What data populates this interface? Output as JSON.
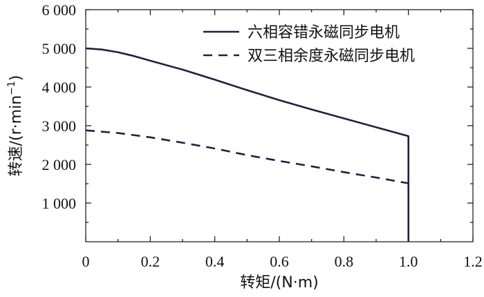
{
  "chart_data": {
    "type": "line",
    "title": "",
    "xlabel": "转矩/(N·m)",
    "ylabel_main": "转速/(r·min",
    "ylabel_sup": "−1",
    "ylabel_close": ")",
    "xlim": [
      0,
      1.2
    ],
    "ylim": [
      0,
      6000
    ],
    "x_ticks": [
      0,
      0.2,
      0.4,
      0.6,
      0.8,
      1.0,
      1.2
    ],
    "x_tick_labels": [
      "0",
      "0.2",
      "0.4",
      "0.6",
      "0.8",
      "1.0",
      "1.2"
    ],
    "y_ticks": [
      1000,
      2000,
      3000,
      4000,
      5000,
      6000
    ],
    "y_tick_labels": [
      "1 000",
      "2 000",
      "3 000",
      "4 000",
      "5 000",
      "6 000"
    ],
    "grid": false,
    "legend_position": "top-right",
    "series": [
      {
        "name": "六相容错永磁同步电机",
        "style": "solid",
        "color": "#2b1a3e",
        "x": [
          0,
          0.05,
          0.1,
          0.15,
          0.2,
          0.3,
          0.4,
          0.5,
          0.6,
          0.7,
          0.8,
          0.9,
          1.0,
          1.0
        ],
        "y": [
          5000,
          4970,
          4900,
          4800,
          4680,
          4450,
          4190,
          3920,
          3660,
          3420,
          3190,
          2960,
          2730,
          0
        ]
      },
      {
        "name": "双三相余度永磁同步电机",
        "style": "dashed",
        "color": "#2b1a3e",
        "x": [
          0,
          0.1,
          0.2,
          0.3,
          0.4,
          0.5,
          0.6,
          0.7,
          0.8,
          0.9,
          1.0
        ],
        "y": [
          2880,
          2810,
          2700,
          2560,
          2410,
          2240,
          2090,
          1950,
          1800,
          1660,
          1510
        ]
      }
    ]
  }
}
